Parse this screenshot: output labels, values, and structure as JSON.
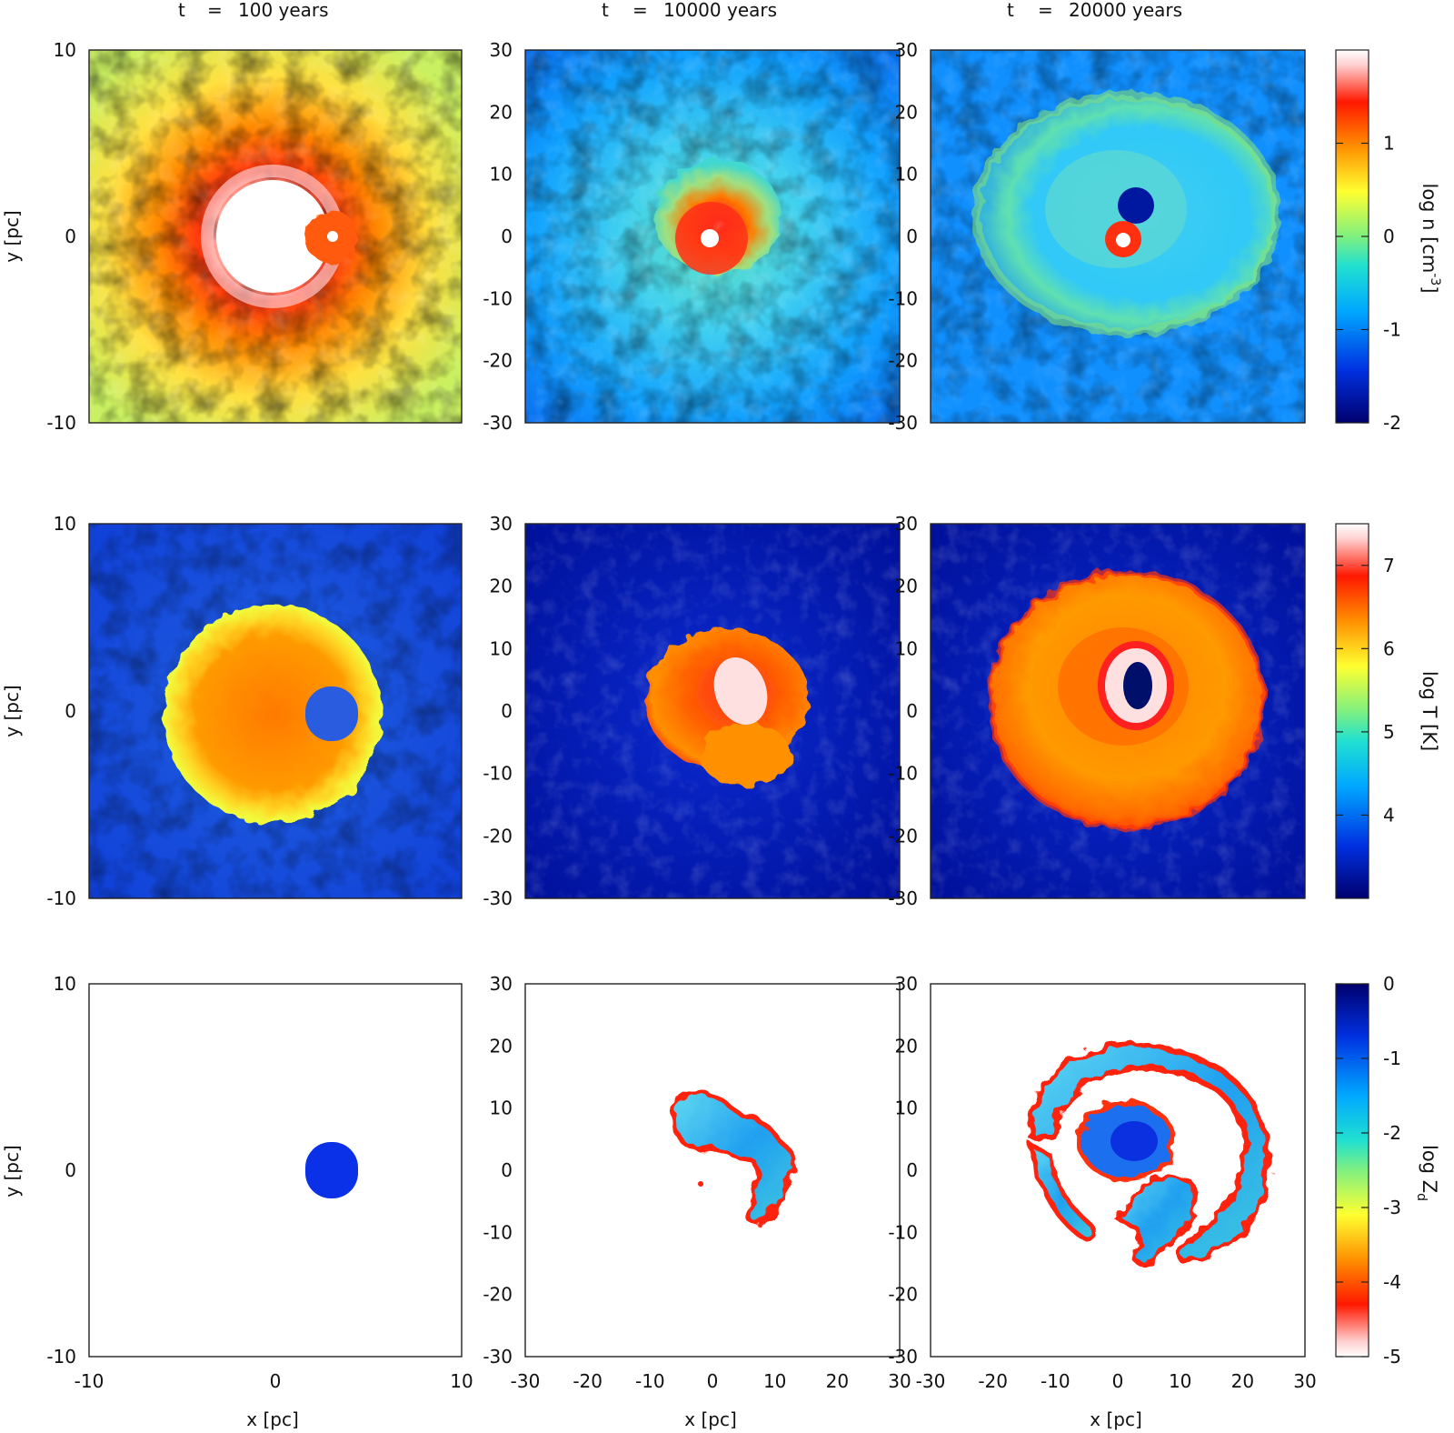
{
  "time_labels": [
    {
      "t": "t",
      "eq": "=",
      "value": "100 years"
    },
    {
      "t": "t",
      "eq": "=",
      "value": "10000 years"
    },
    {
      "t": "t",
      "eq": "=",
      "value": "20000 years"
    }
  ],
  "axes": {
    "ylabel": "y [pc]",
    "xlabel": "x [pc]",
    "col_ticks": [
      [
        "-10",
        "0",
        "10"
      ],
      [
        "-30",
        "-20",
        "-10",
        "0",
        "10",
        "20",
        "30"
      ],
      [
        "-30",
        "-20",
        "-10",
        "0",
        "10",
        "20",
        "30"
      ]
    ],
    "col_ranges": [
      [
        -10,
        10
      ],
      [
        -30,
        30
      ],
      [
        -30,
        30
      ]
    ]
  },
  "colorbars": [
    {
      "label": "log n [cm",
      "label_sup": "-3",
      "label_end": "]",
      "ticks": [
        "1",
        "0",
        "-1",
        "-2"
      ],
      "tick_values": [
        1,
        0,
        -1,
        -2
      ],
      "range": [
        -2,
        2
      ],
      "stops": [
        [
          "#00006e",
          0
        ],
        [
          "#0030e0",
          0.14
        ],
        [
          "#00a8ff",
          0.3
        ],
        [
          "#20e0d0",
          0.42
        ],
        [
          "#80f080",
          0.5
        ],
        [
          "#ffff30",
          0.62
        ],
        [
          "#ff9000",
          0.74
        ],
        [
          "#ff1800",
          0.86
        ],
        [
          "#ffd0d0",
          0.96
        ],
        [
          "#ffffff",
          1
        ]
      ]
    },
    {
      "label": "log T [K]",
      "ticks": [
        "7",
        "6",
        "5",
        "4"
      ],
      "tick_values": [
        7,
        6,
        5,
        4
      ],
      "range": [
        3,
        7.5
      ],
      "stops": [
        [
          "#00006e",
          0
        ],
        [
          "#0030e0",
          0.14
        ],
        [
          "#00a8ff",
          0.3
        ],
        [
          "#20e0d0",
          0.42
        ],
        [
          "#80f080",
          0.5
        ],
        [
          "#ffff30",
          0.62
        ],
        [
          "#ff9000",
          0.74
        ],
        [
          "#ff1800",
          0.86
        ],
        [
          "#ffd0d0",
          0.96
        ],
        [
          "#ffffff",
          1
        ]
      ]
    },
    {
      "label": "log Z",
      "label_sub": "d",
      "ticks": [
        "0",
        "-1",
        "-2",
        "-3",
        "-4",
        "-5"
      ],
      "tick_values": [
        0,
        -1,
        -2,
        -3,
        -4,
        -5
      ],
      "range": [
        -5,
        0
      ],
      "stops": [
        [
          "#ffffff",
          0
        ],
        [
          "#ffd0d0",
          0.04
        ],
        [
          "#ff1800",
          0.14
        ],
        [
          "#ff9000",
          0.26
        ],
        [
          "#ffff30",
          0.38
        ],
        [
          "#80f080",
          0.5
        ],
        [
          "#20e0d0",
          0.58
        ],
        [
          "#00a8ff",
          0.7
        ],
        [
          "#0030e0",
          0.86
        ],
        [
          "#00006e",
          1
        ]
      ]
    }
  ],
  "chart_data": {
    "type": "heatmap",
    "grid": "3x3",
    "rows": [
      {
        "quantity": "log n [cm^-3]",
        "range": [
          -2,
          2
        ]
      },
      {
        "quantity": "log T [K]",
        "range": [
          3,
          7.5
        ]
      },
      {
        "quantity": "log Z_d",
        "range": [
          -5,
          0
        ]
      }
    ],
    "columns": [
      {
        "time": "t = 100 years",
        "x_range": [
          -10,
          10
        ],
        "y_range": [
          -10,
          10
        ]
      },
      {
        "time": "t = 10000 years",
        "x_range": [
          -30,
          30
        ],
        "y_range": [
          -30,
          30
        ]
      },
      {
        "time": "t = 20000 years",
        "x_range": [
          -30,
          30
        ],
        "y_range": [
          -30,
          30
        ]
      }
    ]
  }
}
